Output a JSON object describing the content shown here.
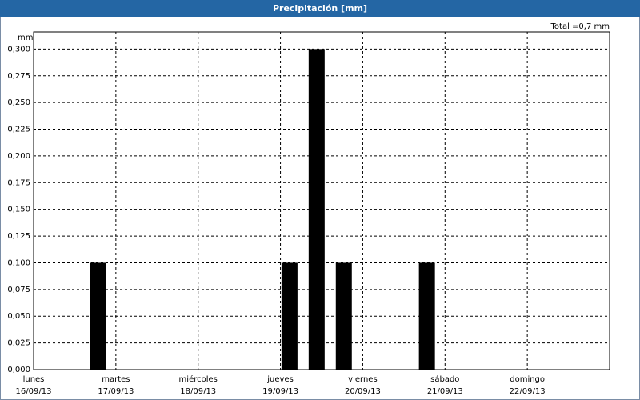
{
  "chart_data": {
    "type": "bar",
    "title": "Precipitación [mm]",
    "ylabel": "mm",
    "annotation": "Total =0,7 mm",
    "x": [
      0.78,
      3.11,
      3.44,
      3.77,
      4.78
    ],
    "values": [
      0.1,
      0.1,
      0.3,
      0.1,
      0.1
    ],
    "color": "#000000",
    "xlim": [
      0,
      7
    ],
    "xticks": [
      {
        "value": 0,
        "label": "lunes",
        "date": "16/09/13"
      },
      {
        "value": 1,
        "label": "martes",
        "date": "17/09/13"
      },
      {
        "value": 2,
        "label": "miércoles",
        "date": "18/09/13"
      },
      {
        "value": 3,
        "label": "jueves",
        "date": "19/09/13"
      },
      {
        "value": 4,
        "label": "viernes",
        "date": "20/09/13"
      },
      {
        "value": 5,
        "label": "sábado",
        "date": "21/09/13"
      },
      {
        "value": 6,
        "label": "domingo",
        "date": "22/09/13"
      }
    ],
    "ylim": [
      0,
      0.316
    ],
    "yticks": [
      {
        "value": 0,
        "label": "0,000"
      },
      {
        "value": 0.025,
        "label": "0,025"
      },
      {
        "value": 0.05,
        "label": "0,050"
      },
      {
        "value": 0.075,
        "label": "0,075"
      },
      {
        "value": 0.1,
        "label": "0,100"
      },
      {
        "value": 0.125,
        "label": "0,125"
      },
      {
        "value": 0.15,
        "label": "0,150"
      },
      {
        "value": 0.175,
        "label": "0,175"
      },
      {
        "value": 0.2,
        "label": "0,200"
      },
      {
        "value": 0.225,
        "label": "0,225"
      },
      {
        "value": 0.25,
        "label": "0,250"
      },
      {
        "value": 0.275,
        "label": "0,275"
      },
      {
        "value": 0.3,
        "label": "0,300"
      }
    ],
    "grid": true
  }
}
